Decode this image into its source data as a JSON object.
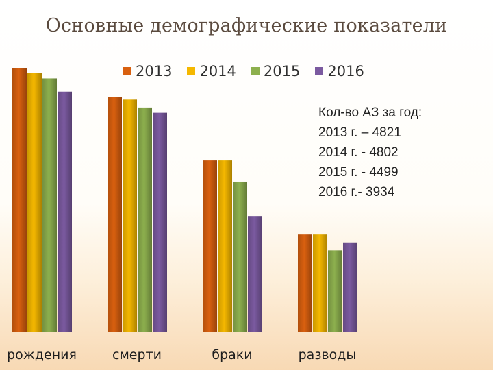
{
  "title": "Основные демографические показатели",
  "note_lines": [
    "Кол-во АЗ за год:",
    "2013 г. – 4821",
    "2014 г. - 4802",
    "2015 г. - 4499",
    "2016 г.-  3934"
  ],
  "colors": {
    "2013": "#d9600f",
    "2014": "#f5b800",
    "2015": "#8db04e",
    "2016": "#7b5aa0"
  },
  "chart_data": {
    "type": "bar",
    "title": "Основные демографические показатели",
    "categories": [
      "рождения",
      "смерти",
      "браки",
      "разводы"
    ],
    "series": [
      {
        "name": "2013",
        "values": [
          100,
          89,
          65,
          37
        ]
      },
      {
        "name": "2014",
        "values": [
          98,
          88,
          65,
          37
        ]
      },
      {
        "name": "2015",
        "values": [
          96,
          85,
          57,
          31
        ]
      },
      {
        "name": "2016",
        "values": [
          91,
          83,
          44,
          34
        ]
      }
    ],
    "ylim": [
      0,
      100
    ],
    "grid": false,
    "legend": "top",
    "xlabel": "",
    "ylabel": ""
  }
}
